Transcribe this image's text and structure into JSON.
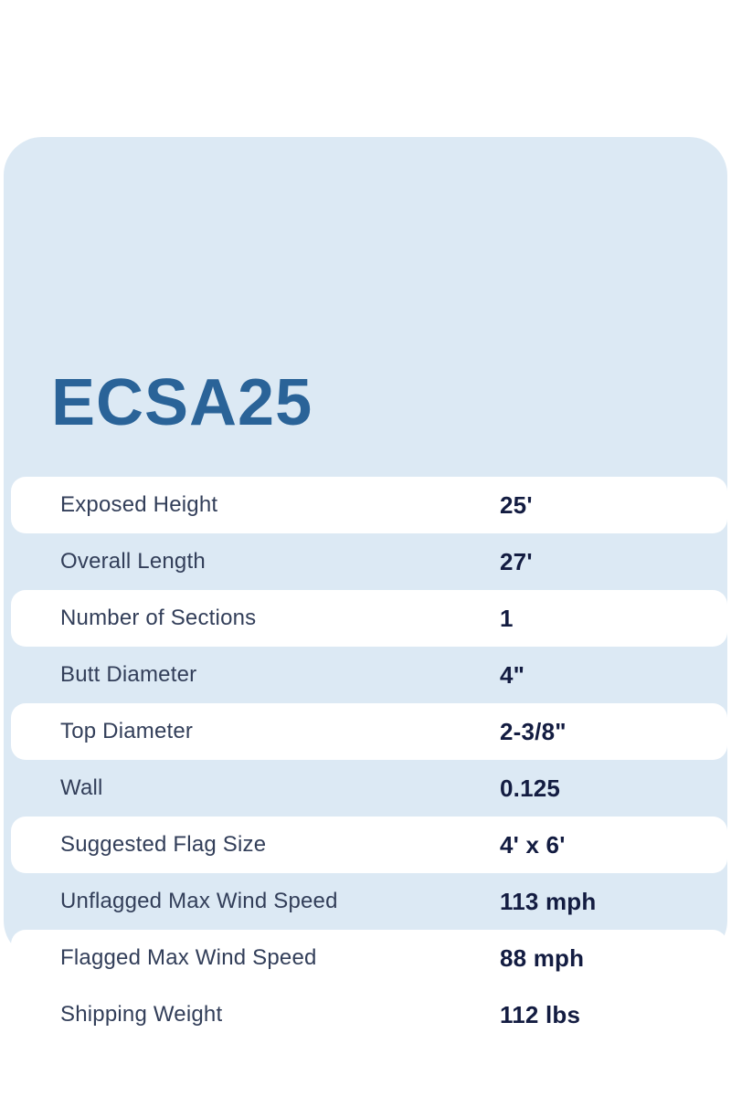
{
  "product": {
    "model": "ECSA25"
  },
  "colors": {
    "card_background": "#dce9f4",
    "row_background": "#ffffff",
    "title_blue": "#2a6398",
    "label_navy": "#323e59",
    "value_navy": "#131c41"
  },
  "spec_table": {
    "rows": [
      {
        "label": "Exposed Height",
        "value": "25'"
      },
      {
        "label": "Overall Length",
        "value": "27'"
      },
      {
        "label": "Number of Sections",
        "value": "1"
      },
      {
        "label": "Butt Diameter",
        "value": "4\""
      },
      {
        "label": "Top Diameter",
        "value": "2-3/8\""
      },
      {
        "label": "Wall",
        "value": "0.125"
      },
      {
        "label": "Suggested Flag Size",
        "value": "4' x 6'"
      },
      {
        "label": "Unflagged Max Wind Speed",
        "value": "113 mph"
      },
      {
        "label": "Flagged Max Wind Speed",
        "value": "88 mph"
      },
      {
        "label": "Shipping Weight",
        "value": "112 lbs"
      }
    ]
  }
}
